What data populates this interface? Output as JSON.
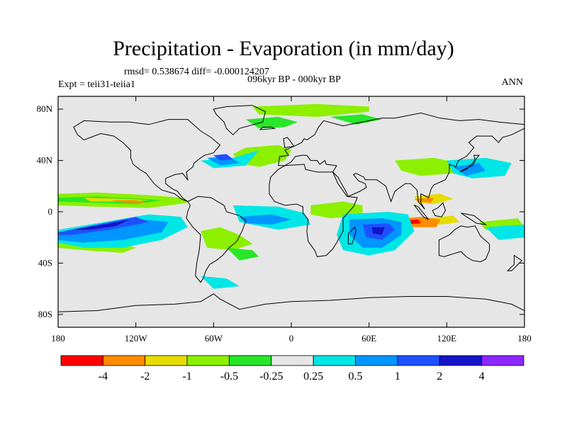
{
  "title": "Precipitation - Evaporation (in mm/day)",
  "stats": "rmsd= 0.538674 diff= -0.000124207",
  "subtitle": "096kyr BP - 000kyr BP",
  "left_label": "Expt = teii31-teiia1",
  "right_label": "ANN",
  "map": {
    "projection": "cylindrical equidistant",
    "lon_range": [
      -180,
      180
    ],
    "lat_range": [
      -90,
      90
    ],
    "background_color": "#e6e6e6",
    "x_ticks": [
      {
        "value": -180,
        "label": "180"
      },
      {
        "value": -120,
        "label": "120W"
      },
      {
        "value": -60,
        "label": "60W"
      },
      {
        "value": 0,
        "label": "0"
      },
      {
        "value": 60,
        "label": "60E"
      },
      {
        "value": 120,
        "label": "120E"
      },
      {
        "value": 180,
        "label": "180"
      }
    ],
    "y_ticks": [
      {
        "value": 80,
        "label": "80N"
      },
      {
        "value": 40,
        "label": "40N"
      },
      {
        "value": 0,
        "label": "0"
      },
      {
        "value": -40,
        "label": "40S"
      },
      {
        "value": -80,
        "label": "80S"
      }
    ]
  },
  "colorbar": {
    "colors": [
      "#ff0000",
      "#ff8c00",
      "#e6dc00",
      "#8cf000",
      "#28e628",
      "#e6e6e6",
      "#00e6e6",
      "#0096ff",
      "#1e50ff",
      "#1414c8",
      "#8c28ff"
    ],
    "labels": [
      "-4",
      "-2",
      "-1",
      "-0.5",
      "-0.25",
      "0.25",
      "0.5",
      "1",
      "2",
      "4"
    ]
  },
  "regions": [
    {
      "color": "#8cf000",
      "polys": [
        [
          [
            -180,
            14
          ],
          [
            -150,
            15
          ],
          [
            -110,
            13
          ],
          [
            -85,
            11
          ],
          [
            -80,
            7
          ],
          [
            -110,
            3
          ],
          [
            -150,
            4
          ],
          [
            -180,
            5
          ]
        ],
        [
          [
            -35,
            50
          ],
          [
            -10,
            52
          ],
          [
            0,
            48
          ],
          [
            -5,
            40
          ],
          [
            -25,
            35
          ],
          [
            -40,
            38
          ],
          [
            -45,
            45
          ]
        ],
        [
          [
            -70,
            -15
          ],
          [
            -55,
            -12
          ],
          [
            -40,
            -18
          ],
          [
            -30,
            -25
          ],
          [
            -45,
            -30
          ],
          [
            -65,
            -28
          ]
        ],
        [
          [
            15,
            5
          ],
          [
            40,
            8
          ],
          [
            55,
            5
          ],
          [
            55,
            -3
          ],
          [
            30,
            -5
          ],
          [
            15,
            -2
          ]
        ],
        [
          [
            -30,
            82
          ],
          [
            20,
            84
          ],
          [
            60,
            82
          ],
          [
            60,
            78
          ],
          [
            20,
            74
          ],
          [
            -25,
            76
          ]
        ],
        [
          [
            80,
            40
          ],
          [
            110,
            42
          ],
          [
            130,
            38
          ],
          [
            125,
            30
          ],
          [
            100,
            28
          ],
          [
            85,
            32
          ]
        ],
        [
          [
            145,
            -8
          ],
          [
            175,
            -5
          ],
          [
            180,
            -12
          ],
          [
            165,
            -15
          ],
          [
            150,
            -14
          ]
        ],
        [
          [
            -180,
            -20
          ],
          [
            -140,
            -22
          ],
          [
            -120,
            -28
          ],
          [
            -130,
            -32
          ],
          [
            -160,
            -30
          ],
          [
            -180,
            -28
          ]
        ]
      ]
    },
    {
      "color": "#28e628",
      "polys": [
        [
          [
            -180,
            11
          ],
          [
            -150,
            12
          ],
          [
            -115,
            10
          ],
          [
            -100,
            9
          ],
          [
            -120,
            6
          ],
          [
            -150,
            7
          ],
          [
            -180,
            8
          ]
        ],
        [
          [
            -35,
            72
          ],
          [
            -10,
            74
          ],
          [
            5,
            70
          ],
          [
            -5,
            66
          ],
          [
            -25,
            65
          ]
        ],
        [
          [
            30,
            74
          ],
          [
            55,
            76
          ],
          [
            70,
            72
          ],
          [
            50,
            68
          ]
        ],
        [
          [
            -50,
            -28
          ],
          [
            -30,
            -30
          ],
          [
            -25,
            -35
          ],
          [
            -40,
            -38
          ]
        ]
      ]
    },
    {
      "color": "#e6dc00",
      "polys": [
        [
          [
            -160,
            11
          ],
          [
            -125,
            10
          ],
          [
            -110,
            9
          ],
          [
            -125,
            8
          ],
          [
            -155,
            8
          ]
        ],
        [
          [
            95,
            12
          ],
          [
            115,
            14
          ],
          [
            125,
            10
          ],
          [
            110,
            6
          ],
          [
            98,
            7
          ]
        ],
        [
          [
            105,
            -5
          ],
          [
            125,
            -3
          ],
          [
            130,
            -8
          ],
          [
            115,
            -10
          ],
          [
            105,
            -8
          ]
        ]
      ]
    },
    {
      "color": "#ff8c00",
      "polys": [
        [
          [
            -140,
            9
          ],
          [
            -120,
            9
          ],
          [
            -112,
            7
          ],
          [
            -128,
            7
          ]
        ],
        [
          [
            75,
            -6
          ],
          [
            100,
            -4
          ],
          [
            115,
            -6
          ],
          [
            112,
            -12
          ],
          [
            90,
            -12
          ],
          [
            78,
            -9
          ]
        ],
        [
          [
            95,
            10
          ],
          [
            110,
            11
          ],
          [
            108,
            7
          ],
          [
            98,
            8
          ]
        ]
      ]
    },
    {
      "color": "#ff0000",
      "polys": [
        [
          [
            85,
            -7
          ],
          [
            98,
            -6
          ],
          [
            100,
            -9
          ],
          [
            88,
            -10
          ]
        ]
      ]
    },
    {
      "color": "#00e6e6",
      "polys": [
        [
          [
            -180,
            -14
          ],
          [
            -150,
            -9
          ],
          [
            -110,
            -2
          ],
          [
            -85,
            -4
          ],
          [
            -80,
            -12
          ],
          [
            -100,
            -22
          ],
          [
            -130,
            -28
          ],
          [
            -160,
            -28
          ],
          [
            -180,
            -24
          ]
        ],
        [
          [
            -45,
            5
          ],
          [
            -10,
            4
          ],
          [
            10,
            -1
          ],
          [
            15,
            -10
          ],
          [
            -10,
            -14
          ],
          [
            -40,
            -8
          ]
        ],
        [
          [
            40,
            -2
          ],
          [
            75,
            0
          ],
          [
            90,
            -2
          ],
          [
            95,
            -15
          ],
          [
            80,
            -30
          ],
          [
            60,
            -34
          ],
          [
            40,
            -30
          ],
          [
            35,
            -18
          ]
        ],
        [
          [
            -70,
            40
          ],
          [
            -45,
            42
          ],
          [
            -25,
            48
          ],
          [
            -35,
            36
          ],
          [
            -60,
            34
          ]
        ],
        [
          [
            120,
            40
          ],
          [
            150,
            42
          ],
          [
            170,
            38
          ],
          [
            165,
            28
          ],
          [
            140,
            26
          ],
          [
            125,
            30
          ]
        ],
        [
          [
            150,
            -12
          ],
          [
            180,
            -10
          ],
          [
            180,
            -20
          ],
          [
            160,
            -22
          ]
        ],
        [
          [
            -70,
            -50
          ],
          [
            -50,
            -52
          ],
          [
            -40,
            -58
          ],
          [
            -60,
            -60
          ]
        ]
      ]
    },
    {
      "color": "#0096ff",
      "polys": [
        [
          [
            -180,
            -18
          ],
          [
            -150,
            -13
          ],
          [
            -115,
            -6
          ],
          [
            -95,
            -8
          ],
          [
            -100,
            -16
          ],
          [
            -130,
            -22
          ],
          [
            -160,
            -24
          ],
          [
            -180,
            -22
          ]
        ],
        [
          [
            45,
            -6
          ],
          [
            70,
            -5
          ],
          [
            85,
            -8
          ],
          [
            85,
            -18
          ],
          [
            70,
            -28
          ],
          [
            55,
            -28
          ],
          [
            45,
            -18
          ]
        ],
        [
          [
            -65,
            42
          ],
          [
            -48,
            43
          ],
          [
            -40,
            38
          ],
          [
            -55,
            36
          ]
        ],
        [
          [
            -40,
            -4
          ],
          [
            -15,
            -2
          ],
          [
            0,
            -6
          ],
          [
            -15,
            -10
          ],
          [
            -35,
            -9
          ]
        ],
        [
          [
            125,
            35
          ],
          [
            145,
            38
          ],
          [
            150,
            32
          ],
          [
            135,
            28
          ]
        ]
      ]
    },
    {
      "color": "#1e50ff",
      "polys": [
        [
          [
            -180,
            -16
          ],
          [
            -150,
            -10
          ],
          [
            -120,
            -4
          ],
          [
            -110,
            -8
          ],
          [
            -140,
            -14
          ],
          [
            -170,
            -18
          ],
          [
            -180,
            -18
          ]
        ],
        [
          [
            55,
            -10
          ],
          [
            75,
            -9
          ],
          [
            80,
            -14
          ],
          [
            70,
            -22
          ],
          [
            58,
            -20
          ]
        ],
        [
          [
            -60,
            44
          ],
          [
            -50,
            45
          ],
          [
            -45,
            41
          ],
          [
            -55,
            40
          ]
        ]
      ]
    },
    {
      "color": "#1414c8",
      "polys": [
        [
          [
            -170,
            -14
          ],
          [
            -145,
            -10
          ],
          [
            -125,
            -6
          ],
          [
            -135,
            -11
          ],
          [
            -155,
            -14
          ]
        ],
        [
          [
            62,
            -12
          ],
          [
            72,
            -12
          ],
          [
            70,
            -18
          ],
          [
            63,
            -17
          ]
        ]
      ]
    }
  ]
}
